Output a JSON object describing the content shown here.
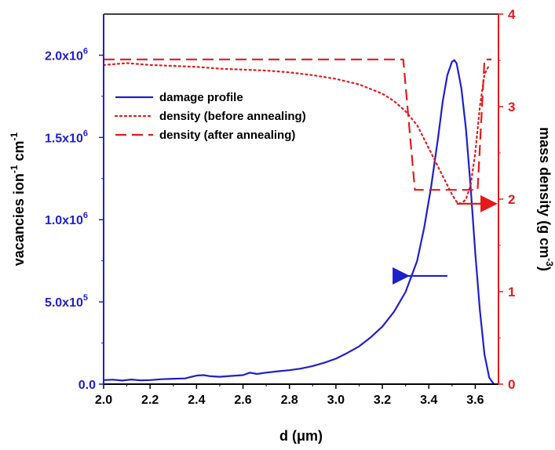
{
  "chart_data": {
    "type": "line",
    "xlabel": "d (μm)",
    "ylabel_left": "vacancies ion⁻¹ cm⁻¹",
    "ylabel_right": "mass density (g cm⁻³)",
    "xlim": [
      2.0,
      3.7
    ],
    "ylim_left": [
      0,
      2250000
    ],
    "ylim_right": [
      0,
      4
    ],
    "x_ticks": [
      "2.0",
      "2.2",
      "2.4",
      "2.6",
      "2.8",
      "3.0",
      "3.2",
      "3.4",
      "3.6"
    ],
    "y_left_ticks": [
      {
        "value": 0,
        "label": "0.0"
      },
      {
        "value": 500000,
        "label": "5.0x10⁵"
      },
      {
        "value": 1000000,
        "label": "1.0x10⁶"
      },
      {
        "value": 1500000,
        "label": "1.5x10⁶"
      },
      {
        "value": 2000000,
        "label": "2.0x10⁶"
      }
    ],
    "y_right_ticks": [
      "0",
      "1",
      "2",
      "3",
      "4"
    ],
    "colors": {
      "left_axis": "#1f1fcc",
      "right_axis": "#e31a1c",
      "damage": "#1f1fcc",
      "density": "#e31a1c"
    },
    "series": [
      {
        "name": "damage profile",
        "axis": "left",
        "style": "solid",
        "x": [
          2.0,
          2.04,
          2.08,
          2.12,
          2.16,
          2.2,
          2.25,
          2.3,
          2.35,
          2.4,
          2.43,
          2.46,
          2.5,
          2.55,
          2.6,
          2.63,
          2.66,
          2.7,
          2.75,
          2.8,
          2.85,
          2.9,
          2.95,
          3.0,
          3.05,
          3.1,
          3.15,
          3.2,
          3.25,
          3.3,
          3.35,
          3.38,
          3.41,
          3.44,
          3.46,
          3.48,
          3.5,
          3.51,
          3.52,
          3.54,
          3.56,
          3.58,
          3.6,
          3.62,
          3.64,
          3.66,
          3.68
        ],
        "y": [
          25000,
          27000,
          22000,
          28000,
          23000,
          25000,
          30000,
          33000,
          35000,
          52000,
          55000,
          48000,
          45000,
          50000,
          55000,
          70000,
          62000,
          70000,
          78000,
          85000,
          95000,
          110000,
          130000,
          155000,
          190000,
          230000,
          285000,
          350000,
          440000,
          560000,
          750000,
          950000,
          1200000,
          1500000,
          1720000,
          1880000,
          1960000,
          1970000,
          1950000,
          1800000,
          1550000,
          1200000,
          800000,
          450000,
          180000,
          40000,
          0
        ]
      },
      {
        "name": "density (before annealing)",
        "axis": "right",
        "style": "dotted",
        "x": [
          2.0,
          2.05,
          2.1,
          2.15,
          2.2,
          2.3,
          2.4,
          2.5,
          2.6,
          2.7,
          2.8,
          2.9,
          3.0,
          3.1,
          3.2,
          3.25,
          3.3,
          3.35,
          3.4,
          3.45,
          3.5,
          3.52,
          3.54,
          3.56,
          3.58,
          3.6,
          3.62,
          3.64,
          3.66
        ],
        "y": [
          3.45,
          3.46,
          3.47,
          3.46,
          3.45,
          3.44,
          3.43,
          3.41,
          3.4,
          3.39,
          3.37,
          3.34,
          3.3,
          3.24,
          3.14,
          3.06,
          2.95,
          2.8,
          2.55,
          2.3,
          2.05,
          1.97,
          1.95,
          2.0,
          2.15,
          2.5,
          3.0,
          3.35,
          3.45
        ]
      },
      {
        "name": "density (after annealing)",
        "axis": "right",
        "style": "dashed",
        "x": [
          2.0,
          3.29,
          3.34,
          3.61,
          3.64,
          3.67
        ],
        "y": [
          3.51,
          3.51,
          2.1,
          2.1,
          3.51,
          3.51
        ]
      }
    ],
    "legend_position": "upper-left",
    "annotations": [
      {
        "type": "arrow",
        "direction": "left",
        "color": "#1f1fcc",
        "points_to": "left axis",
        "at_x": 3.48,
        "at_y_right": 1.17
      },
      {
        "type": "arrow",
        "direction": "right",
        "color": "#e31a1c",
        "points_to": "right axis",
        "at_x": 3.52,
        "at_y_right": 1.95
      }
    ]
  }
}
